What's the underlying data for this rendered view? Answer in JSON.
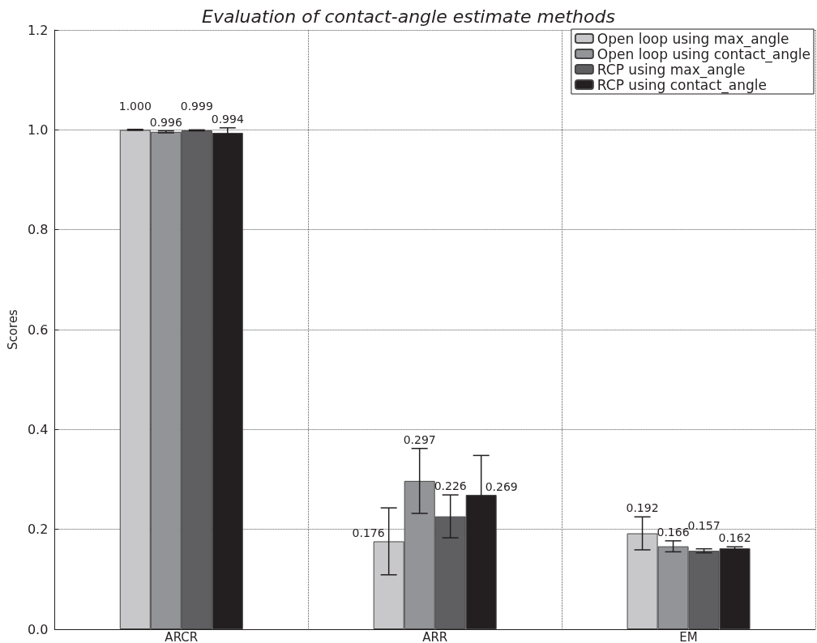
{
  "chart_data": {
    "type": "bar",
    "title": "Evaluation of contact-angle estimate methods",
    "ylabel": "Scores",
    "categories": [
      "ARCR",
      "ARR",
      "EM"
    ],
    "series": [
      {
        "name": "Open loop using max_angle",
        "color": "#c8c8ca",
        "values": [
          1.0,
          0.176,
          0.192
        ],
        "errors": [
          0.001,
          0.067,
          0.033
        ],
        "value_labels": [
          "1.000",
          "0.176",
          "0.192"
        ]
      },
      {
        "name": "Open loop using contact_angle",
        "color": "#939498",
        "values": [
          0.996,
          0.297,
          0.166
        ],
        "errors": [
          0.002,
          0.065,
          0.011
        ],
        "value_labels": [
          "0.996",
          "0.297",
          "0.166"
        ]
      },
      {
        "name": "RCP using max_angle",
        "color": "#5f5f61",
        "values": [
          0.999,
          0.226,
          0.157
        ],
        "errors": [
          0.001,
          0.043,
          0.004
        ],
        "value_labels": [
          "0.999",
          "0.226",
          "0.157"
        ]
      },
      {
        "name": "RCP using contact_angle",
        "color": "#231f20",
        "values": [
          0.994,
          0.269,
          0.162
        ],
        "errors": [
          0.01,
          0.079,
          0.003
        ],
        "value_labels": [
          "0.994",
          "0.269",
          "0.162"
        ]
      }
    ],
    "ylim": [
      0,
      1.2
    ],
    "yticks": [
      {
        "value": 0,
        "label": "0.0"
      },
      0.2,
      0.4,
      0.6,
      0.8,
      {
        "value": 1,
        "label": "1.0"
      },
      1.2
    ],
    "grid": true,
    "legend": "top right"
  }
}
